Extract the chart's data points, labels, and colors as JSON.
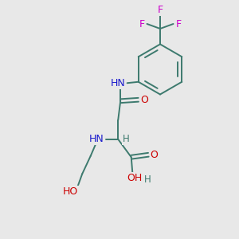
{
  "bg_color": "#e8e8e8",
  "bond_color": "#3d7a6e",
  "N_color": "#1a1acc",
  "O_color": "#cc0000",
  "F_color": "#cc00cc",
  "H_color": "#3d7a6e",
  "figsize": [
    3.0,
    3.0
  ],
  "dpi": 100,
  "xlim": [
    0,
    10
  ],
  "ylim": [
    0,
    10
  ]
}
